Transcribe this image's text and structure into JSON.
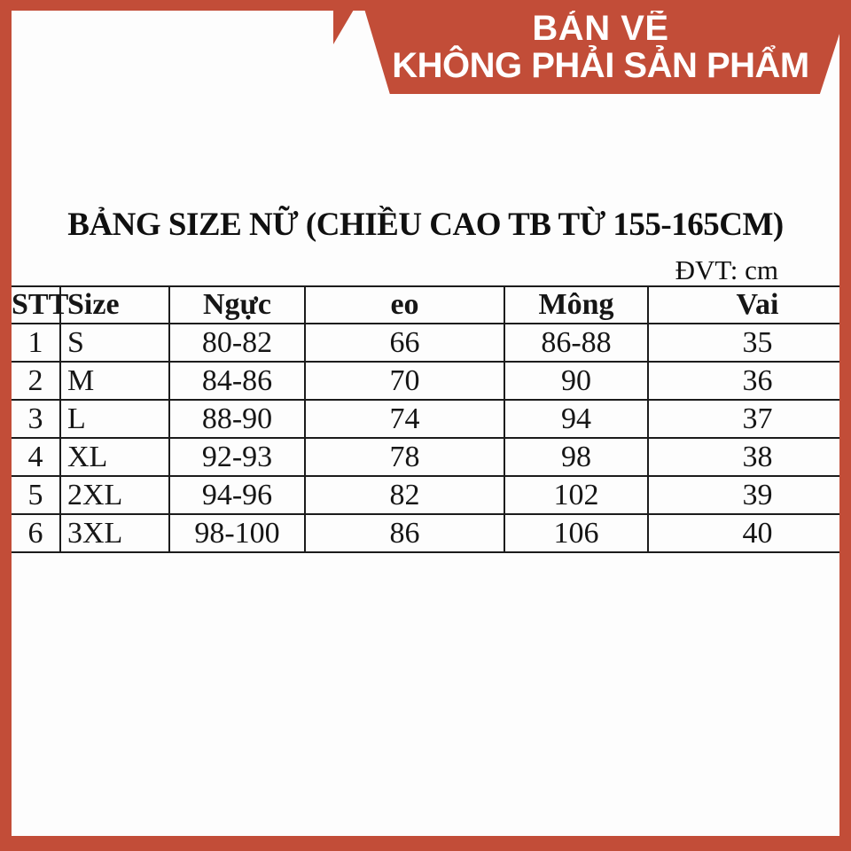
{
  "colors": {
    "accent": "#c24d38",
    "background": "#fdfdfd",
    "text": "#161616",
    "banner_text": "#ffffff"
  },
  "banner": {
    "line1": "BẢN VẼ",
    "line2": "KHÔNG PHẢI SẢN PHẨM"
  },
  "title": "BẢNG SIZE NỮ (CHIỀU CAO TB TỪ 155-165CM)",
  "unit_label": "ĐVT: cm",
  "size_table": {
    "headers": [
      "STT",
      "Size",
      "Ngực",
      "eo",
      "Mông",
      "Vai"
    ],
    "rows": [
      [
        "1",
        "S",
        "80-82",
        "66",
        "86-88",
        "35"
      ],
      [
        "2",
        "M",
        "84-86",
        "70",
        "90",
        "36"
      ],
      [
        "3",
        "L",
        "88-90",
        "74",
        "94",
        "37"
      ],
      [
        "4",
        "XL",
        "92-93",
        "78",
        "98",
        "38"
      ],
      [
        "5",
        "2XL",
        "94-96",
        "82",
        "102",
        "39"
      ],
      [
        "6",
        "3XL",
        "98-100",
        "86",
        "106",
        "40"
      ]
    ]
  }
}
